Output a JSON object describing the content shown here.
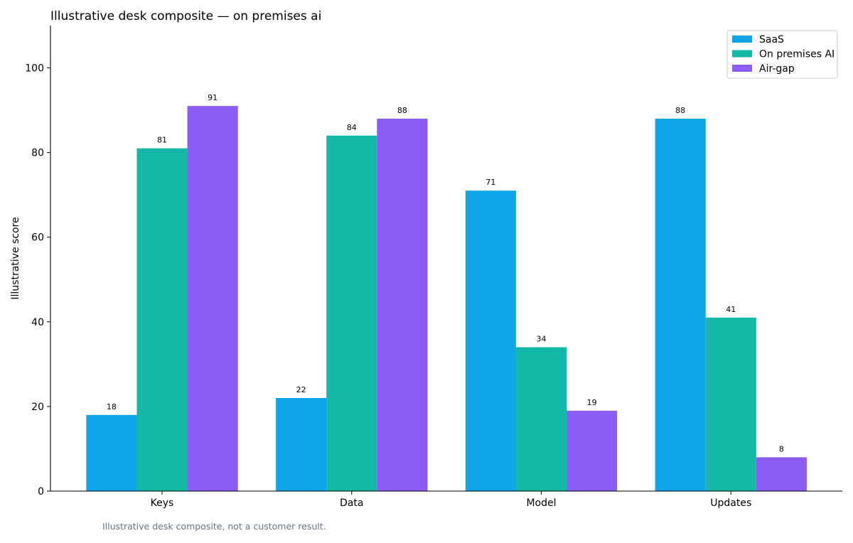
{
  "footnote": "Illustrative desk composite, not a customer result.",
  "chart_data": {
    "type": "bar",
    "title": "Illustrative desk composite — on premises ai",
    "xlabel": "",
    "ylabel": "Illustrative score",
    "ylim": [
      0,
      110
    ],
    "yticks": [
      0,
      20,
      40,
      60,
      80,
      100
    ],
    "grid": false,
    "legend_position": "top-right",
    "categories": [
      "Keys",
      "Data",
      "Model",
      "Updates"
    ],
    "series": [
      {
        "name": "SaaS",
        "color": "#0ea5e9",
        "values": [
          18,
          22,
          71,
          88
        ]
      },
      {
        "name": "On premises AI",
        "color": "#14b8a6",
        "values": [
          81,
          84,
          34,
          41
        ]
      },
      {
        "name": "Air-gap",
        "color": "#8b5cf6",
        "values": [
          91,
          88,
          19,
          8
        ]
      }
    ]
  }
}
